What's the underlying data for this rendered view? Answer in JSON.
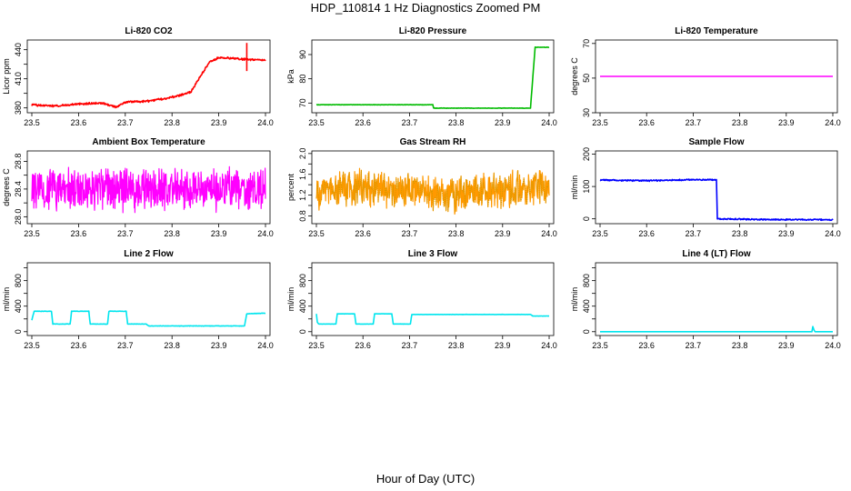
{
  "figure": {
    "title": "HDP_110814  1 Hz Diagnostics Zoomed PM",
    "xlabel": "Hour of Day (UTC)"
  },
  "chart_data": [
    {
      "type": "line",
      "title": "Li-820 CO2",
      "ylabel": "Licor ppm",
      "color": "#ff0000",
      "xlim": [
        23.5,
        24.0
      ],
      "ylim": [
        375,
        450
      ],
      "xticks": [
        "23.5",
        "23.6",
        "23.7",
        "23.8",
        "23.9",
        "24.0"
      ],
      "yticks": [
        "380",
        "395",
        "410",
        "425",
        "440"
      ],
      "x": [
        23.5,
        23.55,
        23.6,
        23.65,
        23.68,
        23.7,
        23.75,
        23.8,
        23.84,
        23.86,
        23.88,
        23.9,
        23.93,
        23.96,
        24.0
      ],
      "y": [
        383,
        382,
        384,
        385,
        381,
        386,
        387,
        391,
        396,
        412,
        427,
        432,
        431,
        430,
        429
      ],
      "noise": 1.2,
      "spike": {
        "x": 23.96,
        "low": 418,
        "high": 447
      }
    },
    {
      "type": "line",
      "title": "Li-820 Pressure",
      "ylabel": "kPa",
      "color": "#00bb00",
      "xlim": [
        23.5,
        24.0
      ],
      "ylim": [
        66,
        96
      ],
      "xticks": [
        "23.5",
        "23.6",
        "23.7",
        "23.8",
        "23.9",
        "24.0"
      ],
      "yticks": [
        "70",
        "80",
        "90"
      ],
      "x": [
        23.5,
        23.75,
        23.752,
        23.96,
        23.965,
        23.97,
        24.0
      ],
      "y": [
        69.3,
        69.3,
        67.9,
        67.9,
        81,
        93,
        93
      ],
      "noise": 0.1
    },
    {
      "type": "line",
      "title": "Li-820 Temperature",
      "ylabel": "degrees C",
      "color": "#ff00ff",
      "xlim": [
        23.5,
        24.0
      ],
      "ylim": [
        30,
        72
      ],
      "xticks": [
        "23.5",
        "23.6",
        "23.7",
        "23.8",
        "23.9",
        "24.0"
      ],
      "yticks": [
        "30",
        "50",
        "70"
      ],
      "x": [
        23.5,
        24.0
      ],
      "y": [
        51,
        51
      ],
      "noise": 0
    },
    {
      "type": "line",
      "title": "Ambient Box Temperature",
      "ylabel": "degrees C",
      "color": "#ff00ff",
      "xlim": [
        23.5,
        24.0
      ],
      "ylim": [
        27.9,
        28.95
      ],
      "xticks": [
        "23.5",
        "23.6",
        "23.7",
        "23.8",
        "23.9",
        "24.0"
      ],
      "yticks": [
        "28.0",
        "28.2",
        "28.4",
        "28.6",
        "28.8"
      ],
      "x": [
        23.5,
        24.0
      ],
      "y": [
        28.4,
        28.4
      ],
      "noise": 0.35
    },
    {
      "type": "line",
      "title": "Gas Stream RH",
      "ylabel": "percent",
      "color": "#ff9900",
      "color2": "#cc9900",
      "xlim": [
        23.5,
        24.0
      ],
      "ylim": [
        0.65,
        2.05
      ],
      "xticks": [
        "23.5",
        "23.6",
        "23.7",
        "23.8",
        "23.9",
        "24.0"
      ],
      "yticks": [
        "0.8",
        "1.0",
        "1.2",
        "1.4",
        "1.6",
        "1.8",
        "2.0"
      ],
      "x": [
        23.5,
        23.6,
        23.7,
        23.8,
        23.9,
        24.0
      ],
      "y": [
        1.25,
        1.35,
        1.3,
        1.2,
        1.3,
        1.4
      ],
      "noise": 0.4
    },
    {
      "type": "line",
      "title": "Sample Flow",
      "ylabel": "ml/min",
      "color": "#0000ff",
      "xlim": [
        23.5,
        24.0
      ],
      "ylim": [
        -15,
        210
      ],
      "xticks": [
        "23.5",
        "23.6",
        "23.7",
        "23.8",
        "23.9",
        "24.0"
      ],
      "yticks": [
        "0",
        "100",
        "200"
      ],
      "x": [
        23.5,
        23.6,
        23.7,
        23.75,
        23.752,
        23.85,
        24.0
      ],
      "y": [
        120,
        118,
        121,
        121,
        0,
        -2,
        -3
      ],
      "noise": 2.5
    },
    {
      "type": "line",
      "title": "Line 2 Flow",
      "ylabel": "ml/min",
      "color": "#00e5ee",
      "xlim": [
        23.5,
        24.0
      ],
      "ylim": [
        -60,
        1080
      ],
      "xticks": [
        "23.5",
        "23.6",
        "23.7",
        "23.8",
        "23.9",
        "24.0"
      ],
      "yticks": [
        "0",
        "200",
        "400",
        "600",
        "800",
        "1000"
      ],
      "x": [
        23.5,
        23.505,
        23.542,
        23.545,
        23.582,
        23.585,
        23.622,
        23.625,
        23.662,
        23.665,
        23.702,
        23.705,
        23.745,
        23.75,
        23.955,
        23.96,
        24.0
      ],
      "y": [
        180,
        320,
        320,
        120,
        120,
        320,
        320,
        120,
        120,
        320,
        320,
        120,
        120,
        90,
        90,
        280,
        290
      ],
      "noise": 4
    },
    {
      "type": "line",
      "title": "Line 3 Flow",
      "ylabel": "ml/min",
      "color": "#00e5ee",
      "xlim": [
        23.5,
        24.0
      ],
      "ylim": [
        -60,
        1080
      ],
      "xticks": [
        "23.5",
        "23.6",
        "23.7",
        "23.8",
        "23.9",
        "24.0"
      ],
      "yticks": [
        "0",
        "200",
        "400",
        "600",
        "800",
        "1000"
      ],
      "x": [
        23.5,
        23.502,
        23.505,
        23.542,
        23.545,
        23.582,
        23.585,
        23.622,
        23.625,
        23.662,
        23.665,
        23.702,
        23.705,
        23.96,
        23.965,
        24.0
      ],
      "y": [
        280,
        150,
        120,
        120,
        280,
        280,
        120,
        120,
        280,
        280,
        120,
        120,
        270,
        270,
        245,
        245
      ],
      "noise": 2
    },
    {
      "type": "line",
      "title": "Line 4 (LT) Flow",
      "ylabel": "ml/min",
      "color": "#00e5ee",
      "xlim": [
        23.5,
        24.0
      ],
      "ylim": [
        -60,
        1080
      ],
      "xticks": [
        "23.5",
        "23.6",
        "23.7",
        "23.8",
        "23.9",
        "24.0"
      ],
      "yticks": [
        "0",
        "200",
        "400",
        "600",
        "800",
        "1000"
      ],
      "x": [
        23.5,
        23.955,
        23.957,
        23.96,
        23.962,
        24.0
      ],
      "y": [
        0,
        0,
        80,
        20,
        0,
        0
      ],
      "noise": 0
    }
  ]
}
